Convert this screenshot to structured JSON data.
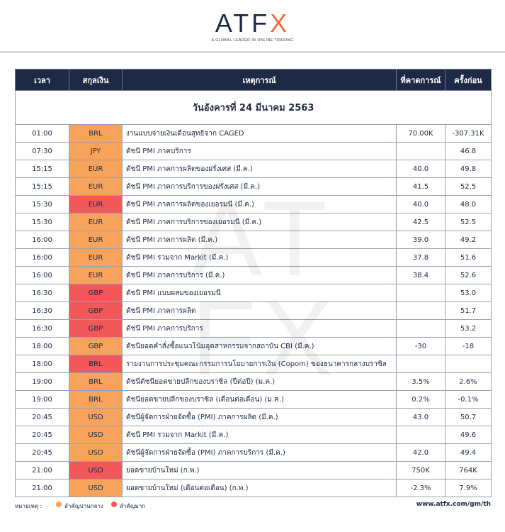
{
  "brand": {
    "logo_a": "A",
    "logo_t": "T",
    "logo_f": "F",
    "logo_x": "X",
    "tagline": "A GLOBAL LEADER IN ONLINE TRADING",
    "accent_color": "#f26a3b",
    "navy_color": "#1e2a45"
  },
  "watermark": {
    "text": [
      "A",
      "T",
      "F",
      "X"
    ]
  },
  "table": {
    "headers": {
      "time": "เวลา",
      "currency": "สกุลเงิน",
      "event": "เหตุการณ์",
      "forecast": "ที่คาดการณ์",
      "previous": "ครั้งก่อน"
    },
    "date_label": "วันอังคารที่ 24 มีนาคม 2563",
    "rows": [
      {
        "time": "01:00",
        "currency": "BRL",
        "importance": "medium",
        "event": "งานแบบจ่ายเงินเดือนสุทธิจาก CAGED",
        "forecast": "70.00K",
        "previous": "-307.31K"
      },
      {
        "time": "07:30",
        "currency": "JPY",
        "importance": "medium",
        "event": "ดัชนี PMI ภาคบริการ",
        "forecast": "",
        "previous": "46.8"
      },
      {
        "time": "15:15",
        "currency": "EUR",
        "importance": "medium",
        "event": "ดัชนี PMI ภาคการผลิตของฝรั่งเศส (มี.ค.)",
        "forecast": "40.0",
        "previous": "49.8"
      },
      {
        "time": "15:15",
        "currency": "EUR",
        "importance": "medium",
        "event": "ดัชนี PMI ภาคการบริการของฝรั่งเศส (มี.ค.)",
        "forecast": "41.5",
        "previous": "52.5"
      },
      {
        "time": "15:30",
        "currency": "EUR",
        "importance": "high",
        "event": "ดัชนี PMI ภาคการผลิตของเยอรมนี (มี.ค.)",
        "forecast": "40.0",
        "previous": "48.0"
      },
      {
        "time": "15:30",
        "currency": "EUR",
        "importance": "medium",
        "event": "ดัชนี PMI ภาคการบริการของเยอรมนี (มี.ค.)",
        "forecast": "42.5",
        "previous": "52.5"
      },
      {
        "time": "16:00",
        "currency": "EUR",
        "importance": "medium",
        "event": "ดัชนี PMI ภาคการผลิต (มี.ค.)",
        "forecast": "39.0",
        "previous": "49.2"
      },
      {
        "time": "16:00",
        "currency": "EUR",
        "importance": "medium",
        "event": "ดัชนี PMI รวมจาก Markit (มี.ค.)",
        "forecast": "37.8",
        "previous": "51.6"
      },
      {
        "time": "16:00",
        "currency": "EUR",
        "importance": "medium",
        "event": "ดัชนี PMI ภาคการบริการ (มี.ค.)",
        "forecast": "38.4",
        "previous": "52.6"
      },
      {
        "time": "16:30",
        "currency": "GBP",
        "importance": "high",
        "event": "ดัชนี PMI แบบผสมของเยอรมนี",
        "forecast": "",
        "previous": "53.0"
      },
      {
        "time": "16:30",
        "currency": "GBP",
        "importance": "high",
        "event": "ดัชนี PMI ภาคการผลิต",
        "forecast": "",
        "previous": "51.7"
      },
      {
        "time": "16:30",
        "currency": "GBP",
        "importance": "high",
        "event": "ดัชนี PMI ภาคการบริการ",
        "forecast": "",
        "previous": "53.2"
      },
      {
        "time": "18:00",
        "currency": "GBP",
        "importance": "medium",
        "event": "ดัชนียอดคำสั่งซื้อแนวโน้มอุตสาหกรรมจากสถาบัน CBI (มี.ค.)",
        "forecast": "-30",
        "previous": "-18"
      },
      {
        "time": "18:00",
        "currency": "BRL",
        "importance": "high",
        "event": "รายงานการประชุมคณะกรรมการนโยบายการเงิน (Copom) ของธนาคารกลางบราซิล",
        "forecast": "",
        "previous": ""
      },
      {
        "time": "19:00",
        "currency": "BRL",
        "importance": "medium",
        "event": "ดัชนีดัชนียอดขายปลีกของบราซิล (ปีต่อปี) (ม.ค.)",
        "forecast": "3.5%",
        "previous": "2.6%"
      },
      {
        "time": "19:00",
        "currency": "BRL",
        "importance": "medium",
        "event": "ดัชนียอดขายปลีกของบราซิล (เดือนต่อเดือน) (ม.ค.)",
        "forecast": "0.2%",
        "previous": "-0.1%"
      },
      {
        "time": "20:45",
        "currency": "USD",
        "importance": "medium",
        "event": "ดัชนีผู้จัดการฝ่ายจัดซื้อ (PMI) ภาคการผลิต (มี.ค.)",
        "forecast": "43.0",
        "previous": "50.7"
      },
      {
        "time": "20:45",
        "currency": "USD",
        "importance": "medium",
        "event": "ดัชนี PMI รวมจาก Markit (มี.ค.)",
        "forecast": "",
        "previous": "49.6"
      },
      {
        "time": "20:45",
        "currency": "USD",
        "importance": "medium",
        "event": "ดัชนีผู้จัดการฝ่ายจัดซื้อ (PMI) ภาคการบริการ (มี.ค.)",
        "forecast": "42.0",
        "previous": "49.4"
      },
      {
        "time": "21:00",
        "currency": "USD",
        "importance": "high",
        "event": "ยอดขายบ้านใหม่ (ก.พ.)",
        "forecast": "750K",
        "previous": "764K"
      },
      {
        "time": "21:00",
        "currency": "USD",
        "importance": "medium",
        "event": "ยอดขายบ้านใหม่ (เดือนต่อเดือน) (ก.พ.)",
        "forecast": "-2.3%",
        "previous": "7.9%"
      }
    ]
  },
  "footer": {
    "note_label": "หมายเหตุ :",
    "medium_label": "สำคัญปานกลาง",
    "high_label": "สำคัญมาก",
    "medium_color": "#f7a35c",
    "high_color": "#f0585a",
    "website": "www.atfx.com/gm/th"
  }
}
